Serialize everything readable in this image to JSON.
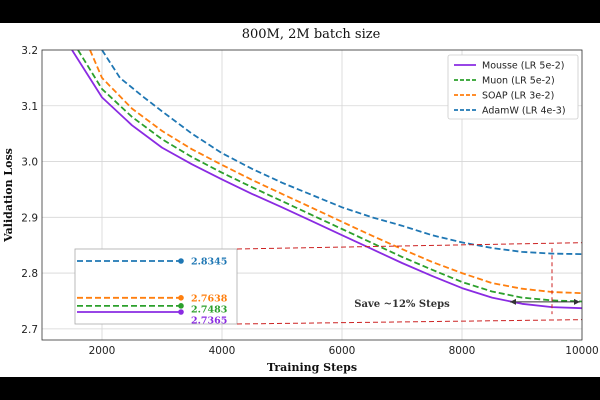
{
  "chart_data": {
    "type": "line",
    "title": "800M, 2M batch size",
    "xlabel": "Training Steps",
    "ylabel": "Validation Loss",
    "xlim": [
      1000,
      10000
    ],
    "ylim": [
      2.68,
      3.2
    ],
    "xticks": [
      2000,
      4000,
      6000,
      8000,
      10000
    ],
    "yticks": [
      2.7,
      2.8,
      2.9,
      3.0,
      3.1,
      3.2
    ],
    "grid": true,
    "legend_position": "top-right",
    "series": [
      {
        "name": "Mousse (LR 5e-2)",
        "color": "#8a2be2",
        "style": "solid",
        "final_label": "2.7365",
        "final_value": 2.7365,
        "x": [
          1500,
          2000,
          2500,
          3000,
          3500,
          4000,
          4500,
          5000,
          5500,
          6000,
          6500,
          7000,
          7500,
          8000,
          8500,
          9000,
          9500,
          10000
        ],
        "y": [
          3.2,
          3.115,
          3.065,
          3.025,
          2.995,
          2.968,
          2.942,
          2.918,
          2.893,
          2.868,
          2.843,
          2.818,
          2.795,
          2.773,
          2.756,
          2.745,
          2.739,
          2.737
        ]
      },
      {
        "name": "Muon (LR 5e-2)",
        "color": "#2ca02c",
        "style": "dashed",
        "final_label": "2.7483",
        "final_value": 2.7483,
        "x": [
          1600,
          2000,
          2500,
          3000,
          3500,
          4000,
          4500,
          5000,
          5500,
          6000,
          6500,
          7000,
          7500,
          8000,
          8500,
          9000,
          9500,
          10000
        ],
        "y": [
          3.2,
          3.13,
          3.08,
          3.04,
          3.008,
          2.98,
          2.954,
          2.929,
          2.904,
          2.879,
          2.854,
          2.829,
          2.806,
          2.784,
          2.767,
          2.756,
          2.751,
          2.749
        ]
      },
      {
        "name": "SOAP (LR 3e-2)",
        "color": "#ff7f0e",
        "style": "dashed",
        "final_label": "2.7638",
        "final_value": 2.7638,
        "x": [
          1800,
          2000,
          2500,
          3000,
          3500,
          4000,
          4500,
          5000,
          5500,
          6000,
          6500,
          7000,
          7500,
          8000,
          8500,
          9000,
          9500,
          10000
        ],
        "y": [
          3.2,
          3.15,
          3.095,
          3.055,
          3.022,
          2.994,
          2.967,
          2.942,
          2.917,
          2.892,
          2.867,
          2.843,
          2.82,
          2.8,
          2.782,
          2.772,
          2.766,
          2.764
        ]
      },
      {
        "name": "AdamW (LR 4e-3)",
        "color": "#1f77b4",
        "style": "dashed",
        "final_label": "2.8345",
        "final_value": 2.8345,
        "x": [
          2000,
          2300,
          2700,
          3000,
          3500,
          4000,
          4500,
          5000,
          5500,
          6000,
          6500,
          7000,
          7500,
          8000,
          8500,
          9000,
          9500,
          10000
        ],
        "y": [
          3.2,
          3.15,
          3.115,
          3.09,
          3.05,
          3.015,
          2.987,
          2.962,
          2.94,
          2.918,
          2.9,
          2.885,
          2.868,
          2.855,
          2.845,
          2.838,
          2.835,
          2.834
        ]
      }
    ],
    "annotations": [
      {
        "text": "Save ~12% Steps",
        "from_step": 8800,
        "to_step": 10000,
        "reference_step": 9500,
        "loss": 2.7483
      }
    ]
  }
}
